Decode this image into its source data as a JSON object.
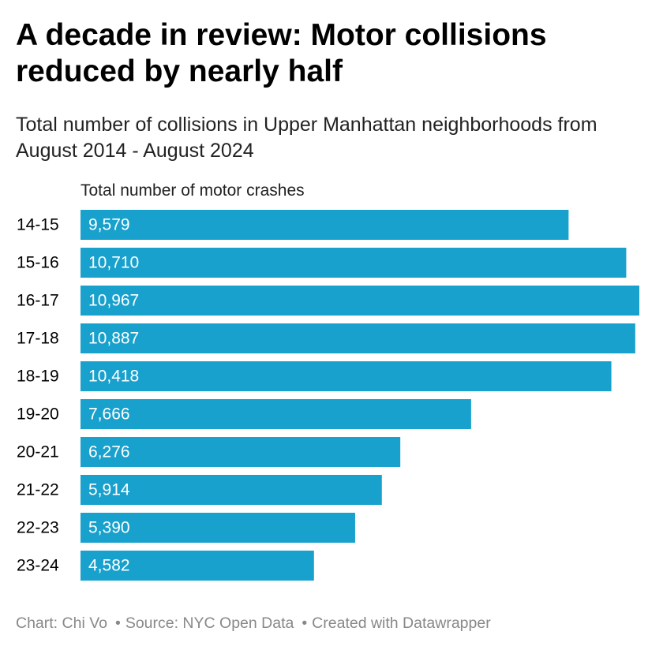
{
  "title": "A decade in review: Motor collisions reduced by nearly half",
  "subtitle": "Total number of collisions in Upper Manhattan neighborhoods from August 2014 - August 2024",
  "column_header": "Total number of motor crashes",
  "colors": {
    "bar": "#18a1cd",
    "bar_label": "#ffffff",
    "category_label": "#000000",
    "footer": "#888888"
  },
  "chart_data": {
    "type": "bar",
    "orientation": "horizontal",
    "title": "A decade in review: Motor collisions reduced by nearly half",
    "subtitle": "Total number of collisions in Upper Manhattan neighborhoods from August 2014 - August 2024",
    "xlabel": "Total number of motor crashes",
    "ylabel": "",
    "categories": [
      "14-15",
      "15-16",
      "16-17",
      "17-18",
      "18-19",
      "19-20",
      "20-21",
      "21-22",
      "22-23",
      "23-24"
    ],
    "values": [
      9579,
      10710,
      10967,
      10887,
      10418,
      7666,
      6276,
      5914,
      5390,
      4582
    ],
    "value_labels": [
      "9,579",
      "10,710",
      "10,967",
      "10,887",
      "10,418",
      "7,666",
      "6,276",
      "5,914",
      "5,390",
      "4,582"
    ],
    "xlim": [
      0,
      10967
    ],
    "grid": false,
    "legend": "none"
  },
  "footer": {
    "chart_credit": "Chart: Chi Vo",
    "source": "Source: NYC Open Data",
    "created_with": "Created with Datawrapper",
    "separator": "•"
  }
}
